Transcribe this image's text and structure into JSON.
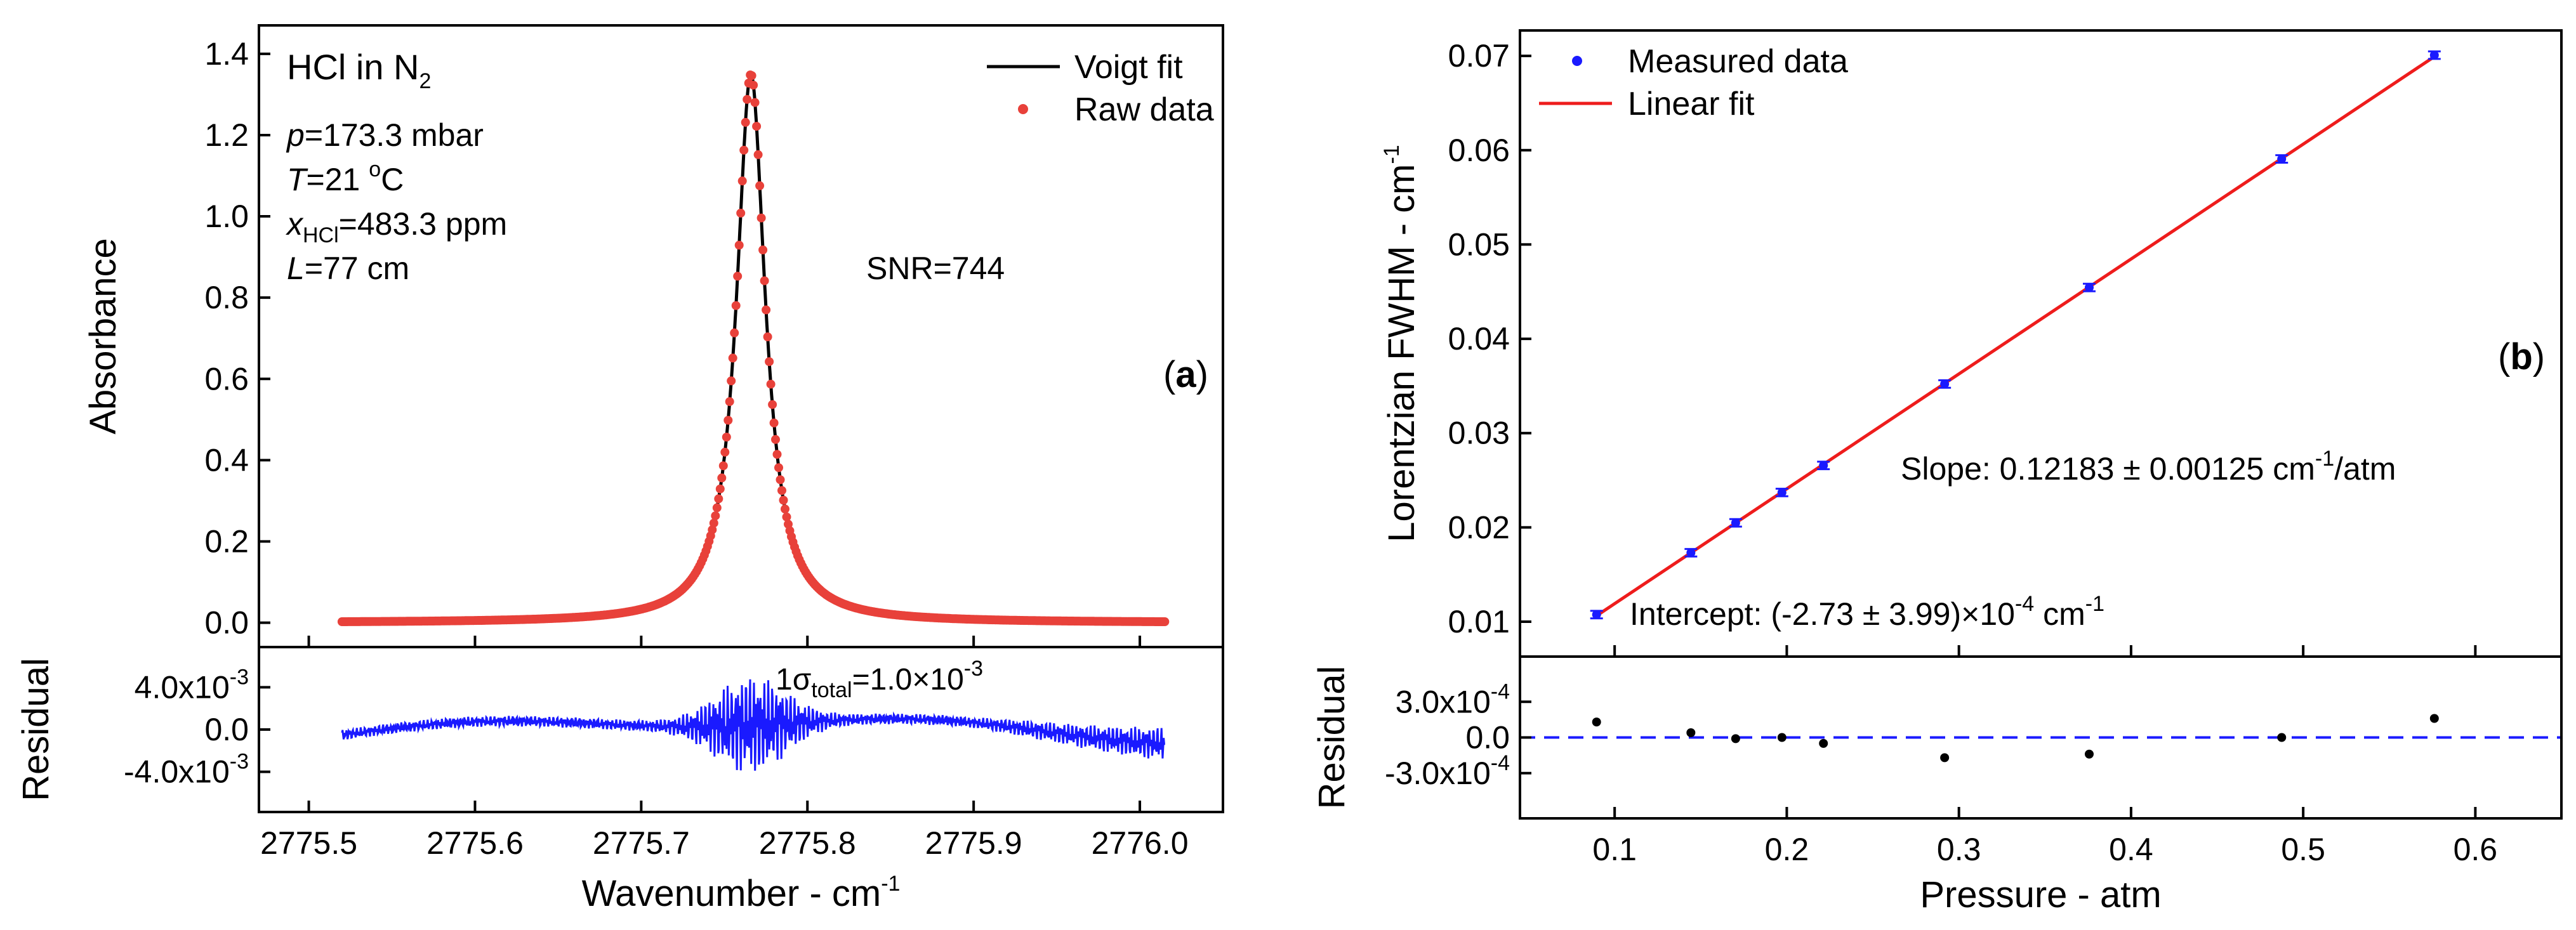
{
  "chart_data": [
    {
      "id": "a",
      "type": "line",
      "panel_label": "(a)",
      "ylabel": "Absorbance",
      "xlabel": "Wavenumber - cm",
      "xlabel_sup": "-1",
      "xlim": [
        2775.47,
        2776.05
      ],
      "xticks": [
        2775.5,
        2775.6,
        2775.7,
        2775.8,
        2775.9,
        2776.0
      ],
      "xtick_labels": [
        "2775.5",
        "2775.6",
        "2775.7",
        "2775.8",
        "2775.9",
        "2776.0"
      ],
      "ylim": [
        -0.06,
        1.47
      ],
      "yticks": [
        0.0,
        0.2,
        0.4,
        0.6,
        0.8,
        1.0,
        1.2,
        1.4
      ],
      "ytick_labels": [
        "0.0",
        "0.2",
        "0.4",
        "0.6",
        "0.8",
        "1.0",
        "1.2",
        "1.4"
      ],
      "peak": {
        "center": 2775.766,
        "height": 1.35,
        "hwhm": 0.0105
      },
      "x_range": [
        2775.52,
        2776.015
      ],
      "series": [
        {
          "name": "Voigt fit",
          "color": "#000000",
          "style": "line"
        },
        {
          "name": "Raw data",
          "color": "#e8413a",
          "style": "markers"
        }
      ],
      "title": {
        "text": "HCl in N",
        "sub": "2",
        "color": "#1a1aff"
      },
      "conditions": [
        {
          "var": "p",
          "text": "=173.3 mbar"
        },
        {
          "var": "T",
          "text": "=21 ",
          "sup": "o",
          "tail": "C"
        },
        {
          "var": "x",
          "sub": "HCl",
          "text": "=483.3 ppm"
        },
        {
          "var": "L",
          "text": "=77 cm"
        }
      ],
      "snr": "SNR=744",
      "residual": {
        "ylabel": "Residual",
        "ylim": [
          -0.0078,
          0.0078
        ],
        "yticks": [
          0.004,
          0.0,
          -0.004
        ],
        "ytick_labels": [
          {
            "base": "4.0x10",
            "exp": "-3"
          },
          {
            "base": "0.0",
            "exp": ""
          },
          {
            "base": "-4.0x10",
            "exp": "-3"
          }
        ],
        "color": "#1a1aff",
        "noise_label": {
          "pre": "1σ",
          "sub": "total",
          "mid": "=1.0×10",
          "sup": "-3"
        }
      }
    },
    {
      "id": "b",
      "type": "scatter",
      "panel_label": "(b)",
      "ylabel": "Lorentzian FWHM - cm",
      "ylabel_sup": "-1",
      "xlabel": "Pressure - atm",
      "xlim": [
        0.045,
        0.65
      ],
      "xticks": [
        0.1,
        0.2,
        0.3,
        0.4,
        0.5,
        0.6
      ],
      "xtick_labels": [
        "0.1",
        "0.2",
        "0.3",
        "0.4",
        "0.5",
        "0.6"
      ],
      "ylim": [
        0.0063,
        0.0727
      ],
      "yticks": [
        0.01,
        0.02,
        0.03,
        0.04,
        0.05,
        0.06,
        0.07
      ],
      "ytick_labels": [
        "0.01",
        "0.02",
        "0.03",
        "0.04",
        "0.05",
        "0.06",
        "0.07"
      ],
      "x": [
        0.0895,
        0.1443,
        0.1703,
        0.1972,
        0.2213,
        0.2917,
        0.3757,
        0.4875,
        0.5762
      ],
      "y": [
        0.01075,
        0.01731,
        0.02048,
        0.0237,
        0.02657,
        0.03521,
        0.04544,
        0.05907,
        0.07008
      ],
      "yerr": [
        0.0004,
        0.0004,
        0.0004,
        0.0004,
        0.0004,
        0.0004,
        0.0004,
        0.0004,
        0.0004
      ],
      "series": [
        {
          "name": "Measured data",
          "color": "#1a1aff",
          "style": "markers"
        },
        {
          "name": "Linear fit",
          "color": "#ee1c1c",
          "style": "line"
        }
      ],
      "fit": {
        "slope": 0.12183,
        "intercept": -0.000273,
        "x_range": [
          0.0895,
          0.5762
        ]
      },
      "slope_text": {
        "pre": "Slope: 0.12183 ± 0.00125 cm",
        "sup": "-1",
        "post": "/atm"
      },
      "intercept_text": {
        "pre": "Intercept: (-2.73 ± 3.99)×10",
        "sup": "-4",
        "post": " cm",
        "sup2": "-1"
      },
      "residual": {
        "ylabel": "Residual",
        "ylim": [
          -0.00068,
          0.00068
        ],
        "yticks": [
          0.0003,
          0.0,
          -0.0003
        ],
        "ytick_labels": [
          {
            "base": "3.0x10",
            "exp": "-4"
          },
          {
            "base": "0.0",
            "exp": ""
          },
          {
            "base": "-3.0x10",
            "exp": "-4"
          }
        ],
        "values": [
          0.00013,
          4e-05,
          -1e-05,
          0.0,
          -5e-05,
          -0.00017,
          -0.00014,
          0.0,
          0.00016
        ],
        "zero_line_color": "#1a1aff"
      }
    }
  ]
}
